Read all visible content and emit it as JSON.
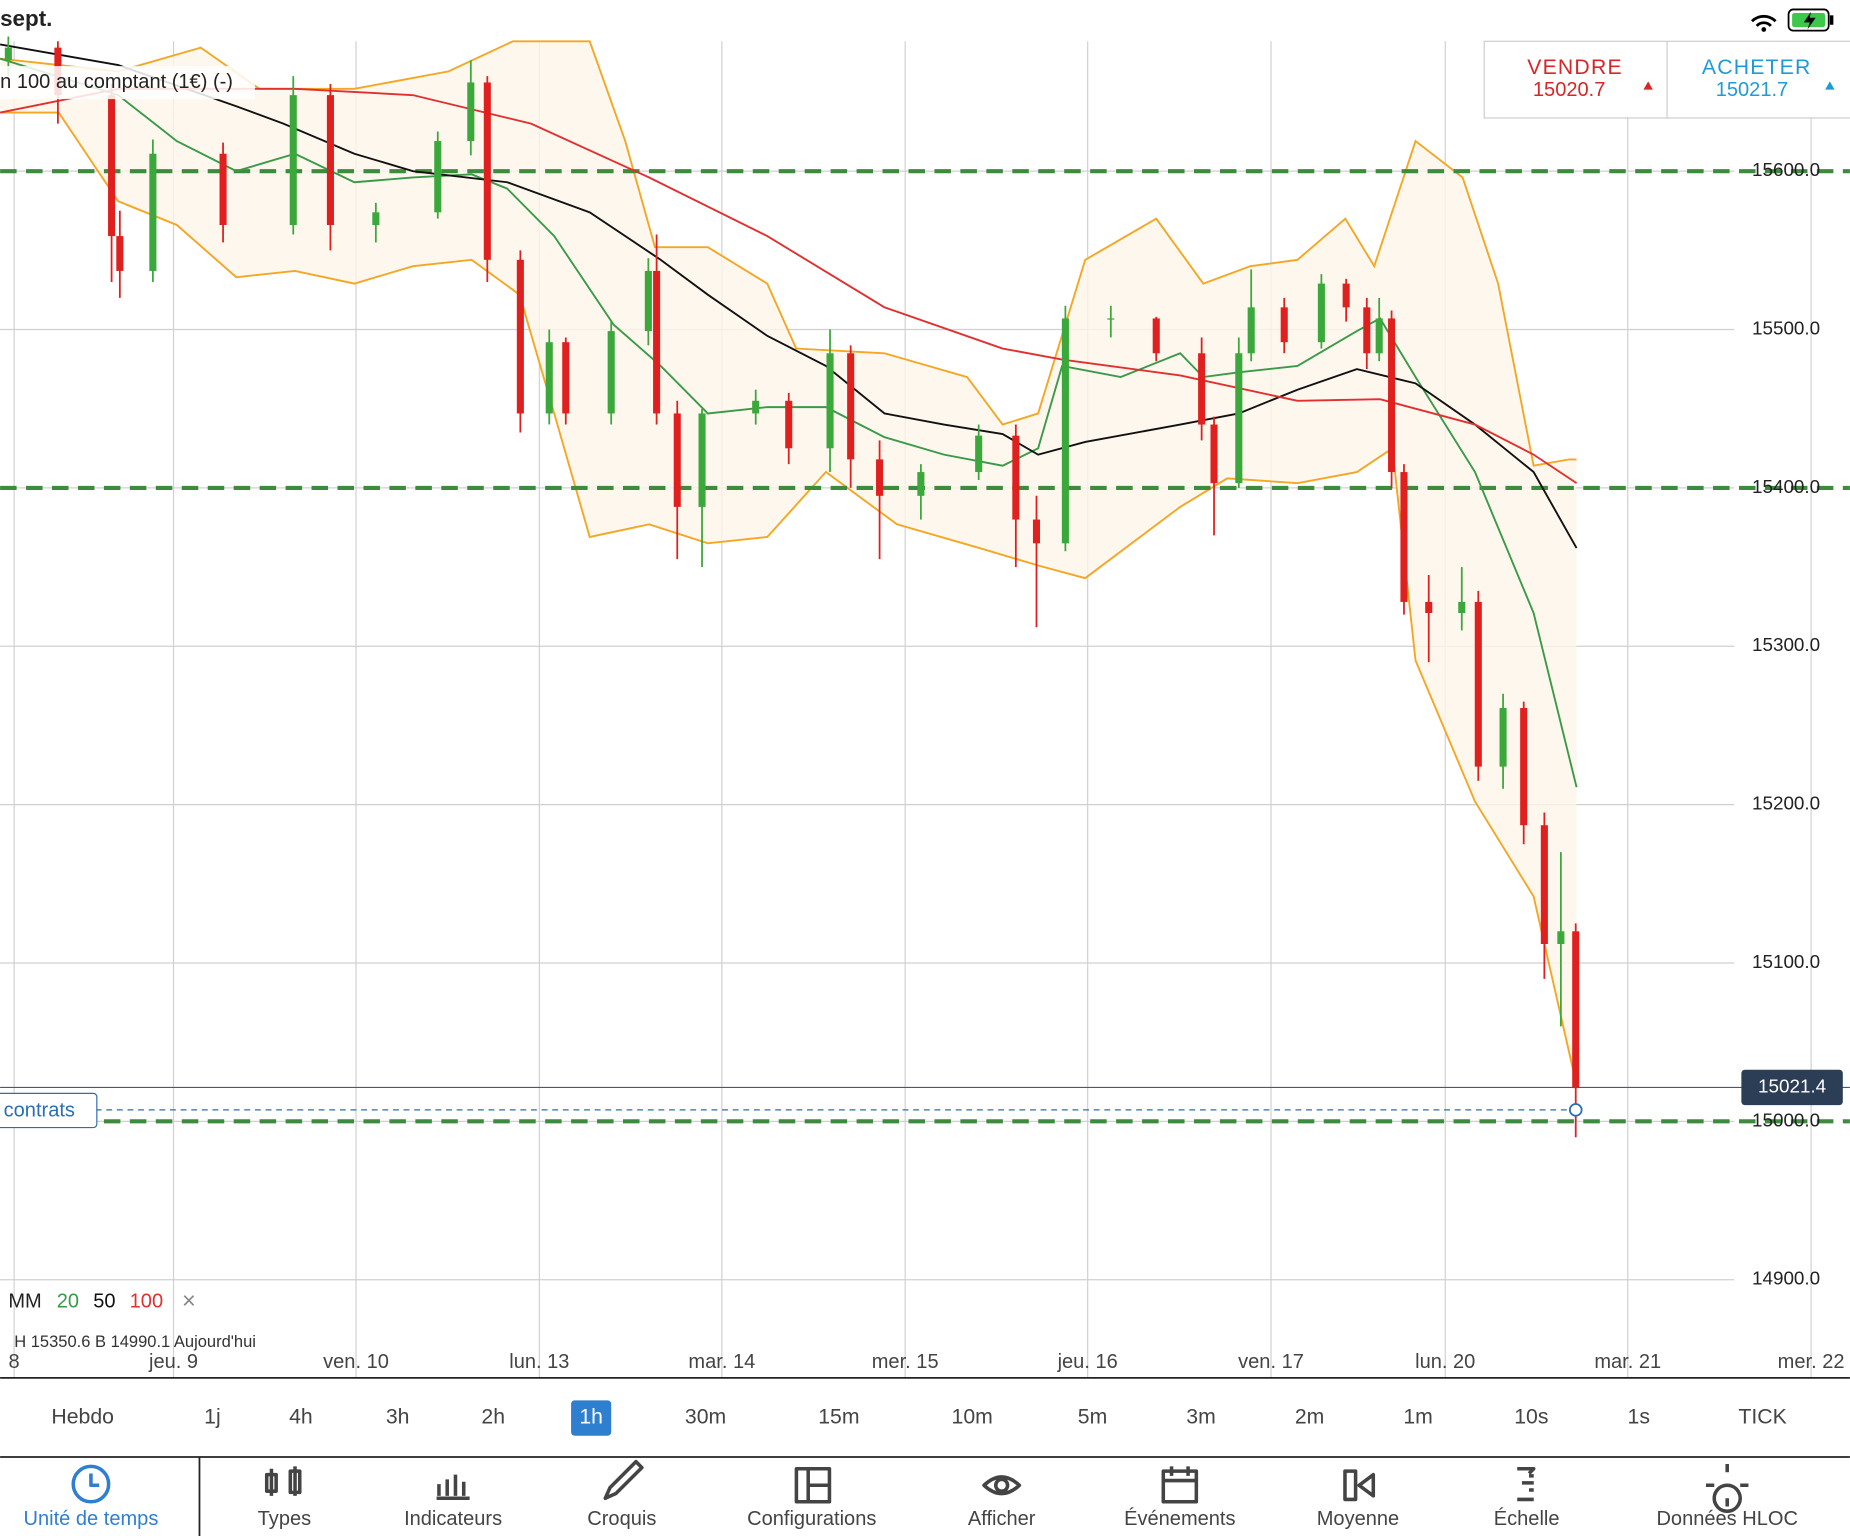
{
  "status_bar": {
    "date": "sept."
  },
  "instrument": "n 100 au comptant (1€) (-)",
  "quote": {
    "sell_label": "VENDRE",
    "sell": "15020.7",
    "buy_label": "ACHETER",
    "buy": "15021.7"
  },
  "chart_data": {
    "type": "candlestick",
    "x": [
      1,
      7,
      13.5,
      14.5,
      18.5,
      27,
      35.5,
      40,
      45.5,
      53,
      57,
      59,
      63,
      66.5,
      68.5,
      74,
      78.5,
      79.5,
      82,
      85,
      91.5,
      95.5,
      100.5,
      103,
      106.5,
      111.5,
      118.5,
      123,
      125.5,
      129,
      134.5,
      140,
      145.5,
      147,
      150,
      151.5,
      155.5,
      160,
      163,
      165.5,
      167,
      168.5,
      170,
      173,
      177,
      179,
      182,
      184.5,
      187,
      189,
      190.8
    ],
    "open": [
      15670,
      15678,
      15648,
      15559,
      15537,
      15611,
      15566,
      15648,
      15566,
      15574,
      15619,
      15656,
      15544,
      15447,
      15492,
      15447,
      15499,
      15537,
      15447,
      15388,
      15447,
      15455,
      15425,
      15485,
      15418,
      15395,
      15410,
      15433,
      15380,
      15365,
      15507,
      15507,
      15485,
      15440,
      15403,
      15485,
      15514,
      15492,
      15529,
      15514,
      15485,
      15507,
      15410,
      15328,
      15321,
      15328,
      15224,
      15261,
      15187,
      15112,
      15120
    ],
    "high": [
      15685,
      15682,
      15655,
      15575,
      15620,
      15618,
      15660,
      15655,
      15580,
      15625,
      15670,
      15660,
      15550,
      15500,
      15495,
      15505,
      15545,
      15560,
      15455,
      15450,
      15462,
      15460,
      15500,
      15490,
      15430,
      15415,
      15440,
      15440,
      15395,
      15515,
      15515,
      15508,
      15495,
      15445,
      15495,
      15538,
      15520,
      15535,
      15532,
      15520,
      15520,
      15512,
      15415,
      15345,
      15350,
      15335,
      15270,
      15265,
      15195,
      15170,
      15125
    ],
    "low": [
      15660,
      15630,
      15530,
      15520,
      15530,
      15555,
      15560,
      15550,
      15555,
      15570,
      15610,
      15530,
      15435,
      15440,
      15440,
      15440,
      15490,
      15440,
      15355,
      15350,
      15440,
      15415,
      15410,
      15400,
      15355,
      15380,
      15405,
      15350,
      15312,
      15360,
      15495,
      15480,
      15430,
      15370,
      15400,
      15480,
      15485,
      15488,
      15505,
      15475,
      15480,
      15400,
      15320,
      15290,
      15310,
      15215,
      15210,
      15175,
      15090,
      15060,
      14990
    ],
    "close": [
      15678,
      15648,
      15559,
      15537,
      15611,
      15566,
      15648,
      15566,
      15574,
      15619,
      15656,
      15544,
      15447,
      15492,
      15447,
      15499,
      15537,
      15447,
      15388,
      15447,
      15455,
      15425,
      15485,
      15418,
      15395,
      15410,
      15433,
      15380,
      15365,
      15507,
      15507,
      15485,
      15440,
      15403,
      15485,
      15514,
      15492,
      15529,
      15514,
      15485,
      15507,
      15410,
      15328,
      15321,
      15328,
      15224,
      15261,
      15187,
      15112,
      15120,
      15021
    ],
    "up_color": "#3aa83a",
    "down_color": "#e0201e",
    "legend_title": "MM",
    "series": [
      {
        "name": "20",
        "color": "#3a9a48",
        "x": [
          0,
          14.3,
          21.4,
          28.6,
          35.7,
          42.9,
          50,
          57.1,
          61.4,
          67.1,
          74.3,
          80,
          85.7,
          92.9,
          100,
          107.1,
          114.3,
          121.4,
          125.7,
          128.6,
          135.7,
          142.9,
          145.7,
          150,
          157.1,
          164.3,
          167.1,
          171.4,
          178.6,
          185.7,
          190.9
        ],
        "values": [
          15671,
          15648,
          15619,
          15600,
          15611,
          15593,
          15596,
          15598,
          15589,
          15559,
          15503,
          15477,
          15447,
          15451,
          15451,
          15432,
          15421,
          15414,
          15425,
          15477,
          15470,
          15485,
          15470,
          15473,
          15477,
          15499,
          15507,
          15470,
          15410,
          15321,
          15211
        ]
      },
      {
        "name": "50",
        "color": "#111111",
        "x": [
          0,
          14.3,
          28.6,
          34.3,
          42.9,
          50,
          61.4,
          71.4,
          80,
          85.7,
          92.9,
          100,
          107.1,
          114.3,
          121.4,
          125.7,
          131.4,
          142.9,
          150,
          157.1,
          164.3,
          171.4,
          178.6,
          185.7,
          190.9
        ],
        "values": [
          15680,
          15667,
          15641,
          15630,
          15611,
          15600,
          15593,
          15574,
          15544,
          15522,
          15496,
          15477,
          15447,
          15440,
          15434,
          15421,
          15429,
          15440,
          15447,
          15462,
          15475,
          15466,
          15440,
          15410,
          15362
        ]
      },
      {
        "name": "100",
        "color": "#e03030",
        "x": [
          0,
          14.3,
          35.7,
          50,
          64.3,
          78.6,
          92.9,
          107.1,
          121.4,
          128.6,
          142.9,
          157.1,
          167.1,
          178.6,
          185.7,
          190.9
        ],
        "values": [
          15637,
          15652,
          15652,
          15648,
          15630,
          15596,
          15559,
          15514,
          15488,
          15481,
          15471,
          15455,
          15456,
          15440,
          15421,
          15403
        ]
      }
    ],
    "bands": [
      {
        "color": "#f5a623",
        "x": [
          0,
          14.3,
          24.3,
          31.4,
          42.9,
          54.3,
          62.1,
          71.4,
          75.7,
          79.3,
          85.7,
          92.9,
          96.4,
          107.1,
          117.1,
          121.4,
          125.7,
          131.4,
          140,
          145.7,
          151.4,
          157.1,
          162.9,
          166.4,
          171.4,
          177.1,
          181.4,
          185.7,
          190,
          190.9
        ],
        "values": [
          15671,
          15663,
          15678,
          15652,
          15652,
          15663,
          15682,
          15682,
          15619,
          15552,
          15552,
          15529,
          15488,
          15485,
          15470,
          15440,
          15447,
          15544,
          15570,
          15529,
          15540,
          15544,
          15570,
          15540,
          15619,
          15596,
          15529,
          15414,
          15418,
          15418
        ]
      },
      {
        "color": "#f5a623",
        "x": [
          0,
          7.1,
          14.3,
          21.4,
          28.6,
          35.7,
          42.9,
          50,
          57.1,
          62.9,
          67.1,
          71.4,
          78.6,
          85.7,
          92.9,
          100,
          108.6,
          118.6,
          125.7,
          131.4,
          142.9,
          148.6,
          157.1,
          164.3,
          168.6,
          171.4,
          178.6,
          185.7,
          190.9
        ],
        "values": [
          15637,
          15637,
          15581,
          15566,
          15533,
          15537,
          15529,
          15540,
          15544,
          15522,
          15447,
          15369,
          15377,
          15365,
          15369,
          15410,
          15377,
          15362,
          15351,
          15343,
          15388,
          15406,
          15403,
          15410,
          15425,
          15291,
          15202,
          15142,
          15023
        ]
      }
    ],
    "levels": [
      15600,
      15400,
      15000
    ],
    "last_price": 15021.4,
    "position_label": "contrats",
    "hloc": "H 15350.6   B 14990.1   Aujourd'hui",
    "xlim": [
      0,
      224
    ],
    "ylim": [
      14838,
      15682
    ],
    "xticks": [
      {
        "value": 1.7,
        "label": "8"
      },
      {
        "value": 21,
        "label": "jeu. 9"
      },
      {
        "value": 43.1,
        "label": "ven. 10"
      },
      {
        "value": 65.3,
        "label": "lun. 13"
      },
      {
        "value": 87.4,
        "label": "mar. 14"
      },
      {
        "value": 109.6,
        "label": "mer. 15"
      },
      {
        "value": 131.7,
        "label": "jeu. 16"
      },
      {
        "value": 153.9,
        "label": "ven. 17"
      },
      {
        "value": 175,
        "label": "lun. 20"
      },
      {
        "value": 197.1,
        "label": "mar. 21"
      },
      {
        "value": 219.3,
        "label": "mer. 22"
      }
    ],
    "yticks": [
      {
        "value": 14900,
        "label": "14900.0"
      },
      {
        "value": 15000,
        "label": "15000.0"
      },
      {
        "value": 15100,
        "label": "15100.0"
      },
      {
        "value": 15200,
        "label": "15200.0"
      },
      {
        "value": 15300,
        "label": "15300.0"
      },
      {
        "value": 15400,
        "label": "15400.0"
      },
      {
        "value": 15500,
        "label": "15500.0"
      },
      {
        "value": 15600,
        "label": "15600.0"
      }
    ]
  },
  "timeframes": {
    "items": [
      "Hebdo",
      "1j",
      "4h",
      "3h",
      "2h",
      "1h",
      "30m",
      "15m",
      "10m",
      "5m",
      "3m",
      "2m",
      "1m",
      "10s",
      "1s",
      "TICK"
    ],
    "selected": 5
  },
  "toolbar": {
    "items": [
      "Unité de temps",
      "Types",
      "Indicateurs",
      "Croquis",
      "Configurations",
      "Afficher",
      "Événements",
      "Moyenne",
      "Échelle",
      "Données HLOC"
    ],
    "active": 0
  }
}
